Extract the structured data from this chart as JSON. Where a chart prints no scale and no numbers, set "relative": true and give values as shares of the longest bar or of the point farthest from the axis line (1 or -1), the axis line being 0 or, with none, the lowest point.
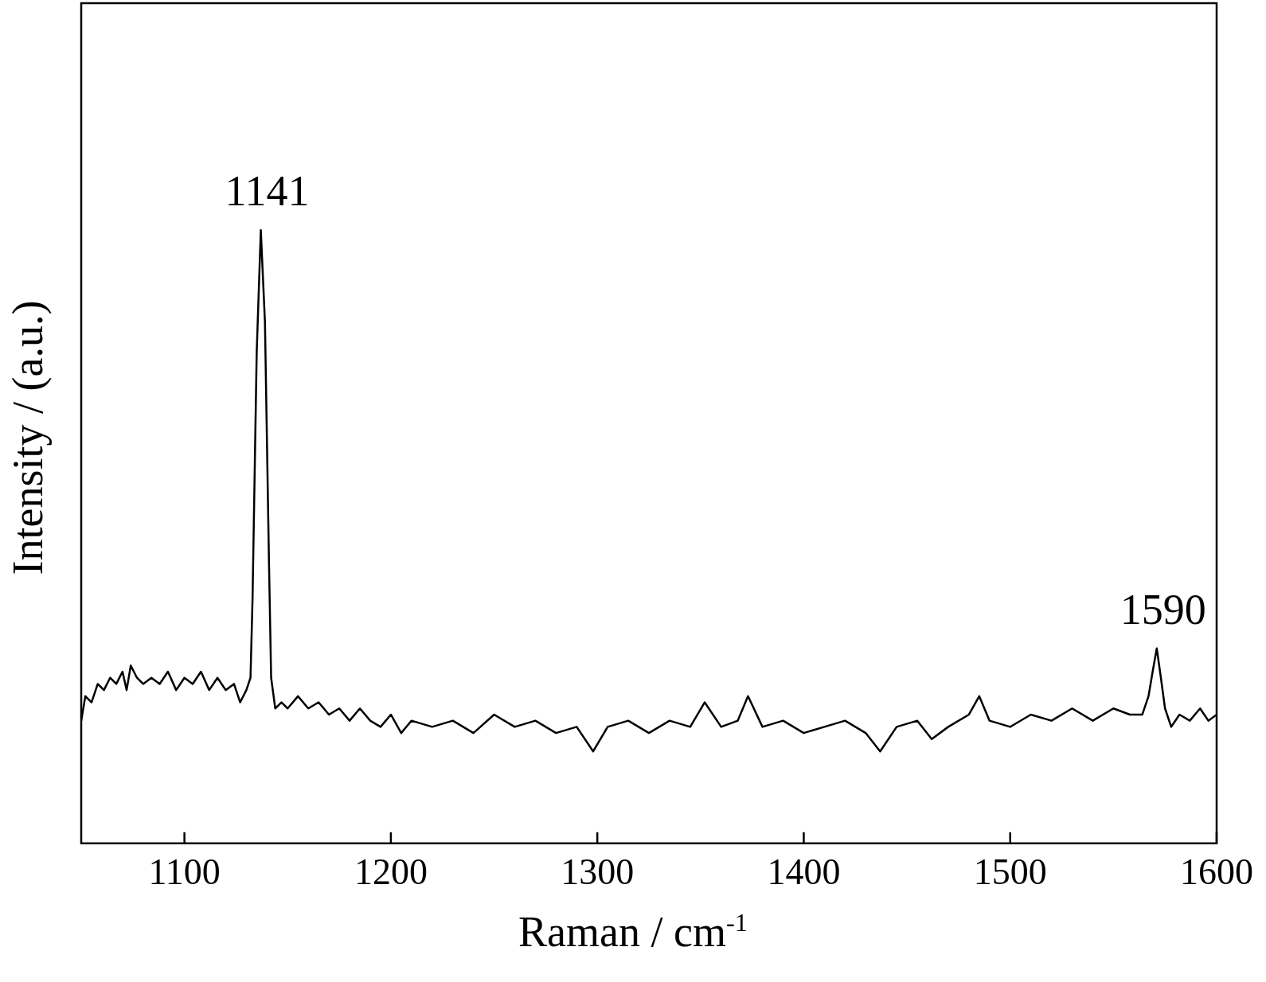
{
  "chart_data": {
    "type": "line",
    "relative": true,
    "xlabel": "Raman / cm$^{-1}$",
    "ylabel": "Intensity / (a.u.)",
    "xlim": [
      1050,
      1600
    ],
    "xticks": [
      1100,
      1200,
      1300,
      1400,
      1500,
      1600
    ],
    "grid": false,
    "legend": false,
    "marker": "none",
    "line_style": "solid",
    "annotations": [
      {
        "text": "1141",
        "x": 1137,
        "y": 1
      },
      {
        "text": "1590",
        "x": 1571,
        "y": 0.318
      }
    ],
    "x": [
      1050,
      1052,
      1055,
      1058,
      1061,
      1064,
      1067,
      1070,
      1072,
      1074,
      1077,
      1080,
      1084,
      1088,
      1092,
      1096,
      1100,
      1104,
      1108,
      1112,
      1116,
      1120,
      1124,
      1127,
      1130,
      1132,
      1133,
      1135,
      1137,
      1139,
      1141,
      1142,
      1144,
      1147,
      1150,
      1155,
      1160,
      1165,
      1170,
      1175,
      1180,
      1185,
      1190,
      1195,
      1200,
      1205,
      1210,
      1220,
      1230,
      1240,
      1250,
      1260,
      1270,
      1280,
      1290,
      1298,
      1305,
      1315,
      1325,
      1335,
      1345,
      1352,
      1360,
      1368,
      1373,
      1380,
      1390,
      1400,
      1410,
      1420,
      1430,
      1437,
      1445,
      1455,
      1462,
      1470,
      1480,
      1485,
      1490,
      1500,
      1510,
      1520,
      1530,
      1540,
      1550,
      1558,
      1564,
      1567,
      1569,
      1571,
      1573,
      1575,
      1578,
      1582,
      1587,
      1592,
      1596,
      1600
    ],
    "series": [
      {
        "color": "#000000",
        "values": [
          0.2,
          0.24,
          0.23,
          0.26,
          0.25,
          0.27,
          0.26,
          0.28,
          0.25,
          0.29,
          0.27,
          0.26,
          0.27,
          0.26,
          0.28,
          0.25,
          0.27,
          0.26,
          0.28,
          0.25,
          0.27,
          0.25,
          0.26,
          0.23,
          0.25,
          0.27,
          0.4,
          0.8,
          1.0,
          0.85,
          0.45,
          0.27,
          0.22,
          0.23,
          0.22,
          0.24,
          0.22,
          0.23,
          0.21,
          0.22,
          0.2,
          0.22,
          0.2,
          0.19,
          0.21,
          0.18,
          0.2,
          0.19,
          0.2,
          0.18,
          0.21,
          0.19,
          0.2,
          0.18,
          0.19,
          0.15,
          0.19,
          0.2,
          0.18,
          0.2,
          0.19,
          0.23,
          0.19,
          0.2,
          0.24,
          0.19,
          0.2,
          0.18,
          0.19,
          0.2,
          0.18,
          0.15,
          0.19,
          0.2,
          0.17,
          0.19,
          0.21,
          0.24,
          0.2,
          0.19,
          0.21,
          0.2,
          0.22,
          0.2,
          0.22,
          0.21,
          0.21,
          0.24,
          0.28,
          0.318,
          0.27,
          0.22,
          0.19,
          0.21,
          0.2,
          0.22,
          0.2,
          0.21
        ]
      }
    ]
  }
}
